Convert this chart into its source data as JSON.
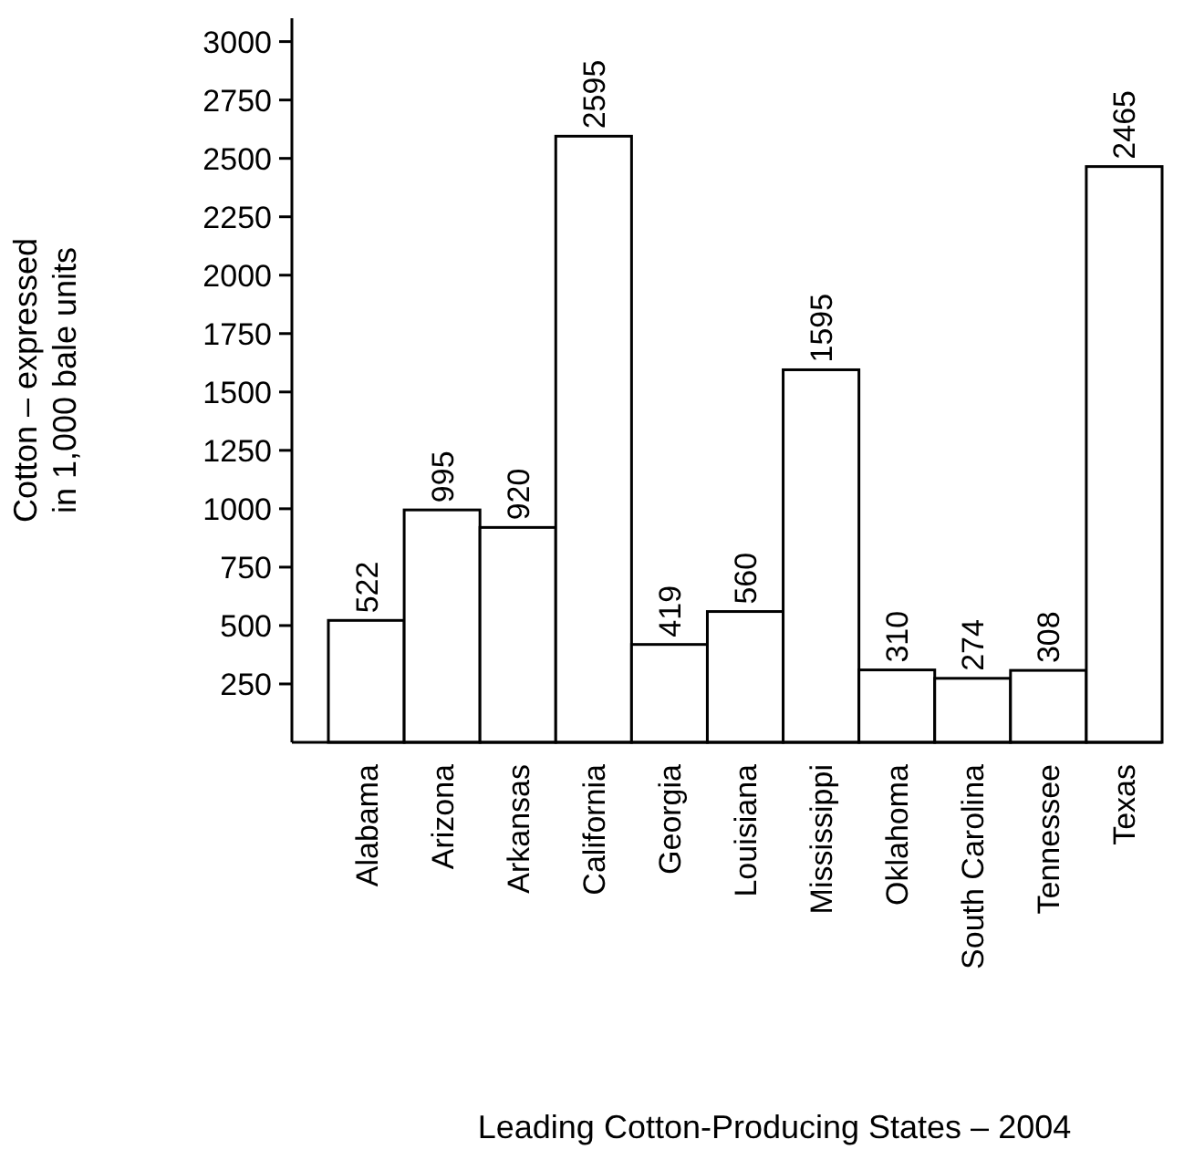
{
  "chart_data": {
    "type": "bar",
    "xlabel": "Leading Cotton-Producing States – 2004",
    "ylabel": "Cotton – expressed\nin 1,000 bale units",
    "categories": [
      "Alabama",
      "Arizona",
      "Arkansas",
      "California",
      "Georgia",
      "Louisiana",
      "Mississippi",
      "Oklahoma",
      "South Carolina",
      "Tennessee",
      "Texas"
    ],
    "values": [
      522,
      995,
      920,
      2595,
      419,
      560,
      1595,
      310,
      274,
      308,
      2465
    ],
    "color": "#ffffff",
    "ylim": [
      0,
      3100
    ],
    "yticks": [
      250,
      500,
      750,
      1000,
      1250,
      1500,
      1750,
      2000,
      2250,
      2500,
      2750,
      3000
    ],
    "grid": false,
    "data_labels": true
  }
}
